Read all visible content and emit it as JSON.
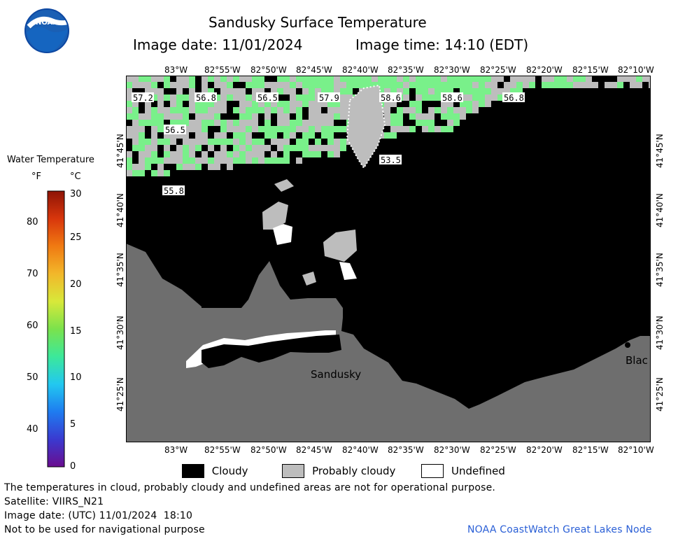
{
  "header": {
    "title": "Sandusky Surface Temperature",
    "image_date": "Image date: 11/01/2024",
    "image_time": "Image time: 14:10 (EDT)",
    "logo_text": "NOAA"
  },
  "axes": {
    "lon_ticks": [
      "83°W",
      "82°55'W",
      "82°50'W",
      "82°45'W",
      "82°40'W",
      "82°35'W",
      "82°30'W",
      "82°25'W",
      "82°20'W",
      "82°15'W",
      "82°10'W"
    ],
    "lat_ticks": [
      "41°45'N",
      "41°40'N",
      "41°35'N",
      "41°30'N",
      "41°25'N"
    ]
  },
  "colorbar": {
    "title": "Water Temperature",
    "unit_f": "°F",
    "unit_c": "°C",
    "fahrenheit_ticks": [
      "80",
      "70",
      "60",
      "50",
      "40"
    ],
    "celsius_ticks": [
      "30",
      "25",
      "20",
      "15",
      "10",
      "5",
      "0"
    ],
    "colors": [
      "#6a0d8f",
      "#3a3ad0",
      "#1e7cf0",
      "#22c8f0",
      "#3ce89a",
      "#7be24c",
      "#d8e83a",
      "#f2b72a",
      "#f07a12",
      "#d8360c",
      "#8e1406"
    ]
  },
  "map_labels": {
    "temps": [
      "57.2",
      "56.8",
      "56.5",
      "57.9",
      "58.6",
      "58.6",
      "56.8",
      "56.5",
      "53.5",
      "55.8"
    ],
    "cities": [
      "Sandusky",
      "Blac"
    ]
  },
  "legend": {
    "cloudy": "Cloudy",
    "probably_cloudy": "Probably cloudy",
    "undefined": "Undefined"
  },
  "footer": {
    "disclaimer": "The temperatures in cloud, probably cloudy and undefined areas are not for operational purpose.",
    "satellite": "Satellite: VIIRS_N21",
    "utc_date": "Image date: (UTC) 11/01/2024  18:10",
    "navigation": "Not to be used for navigational purpose",
    "credit": "NOAA CoastWatch Great Lakes Node"
  },
  "colors": {
    "land": "#6e6e6e",
    "cloudy": "#000000",
    "probably_cloudy": "#bdbdbd",
    "water_green": "#79f08a",
    "credit_blue": "#2a5fd6"
  }
}
